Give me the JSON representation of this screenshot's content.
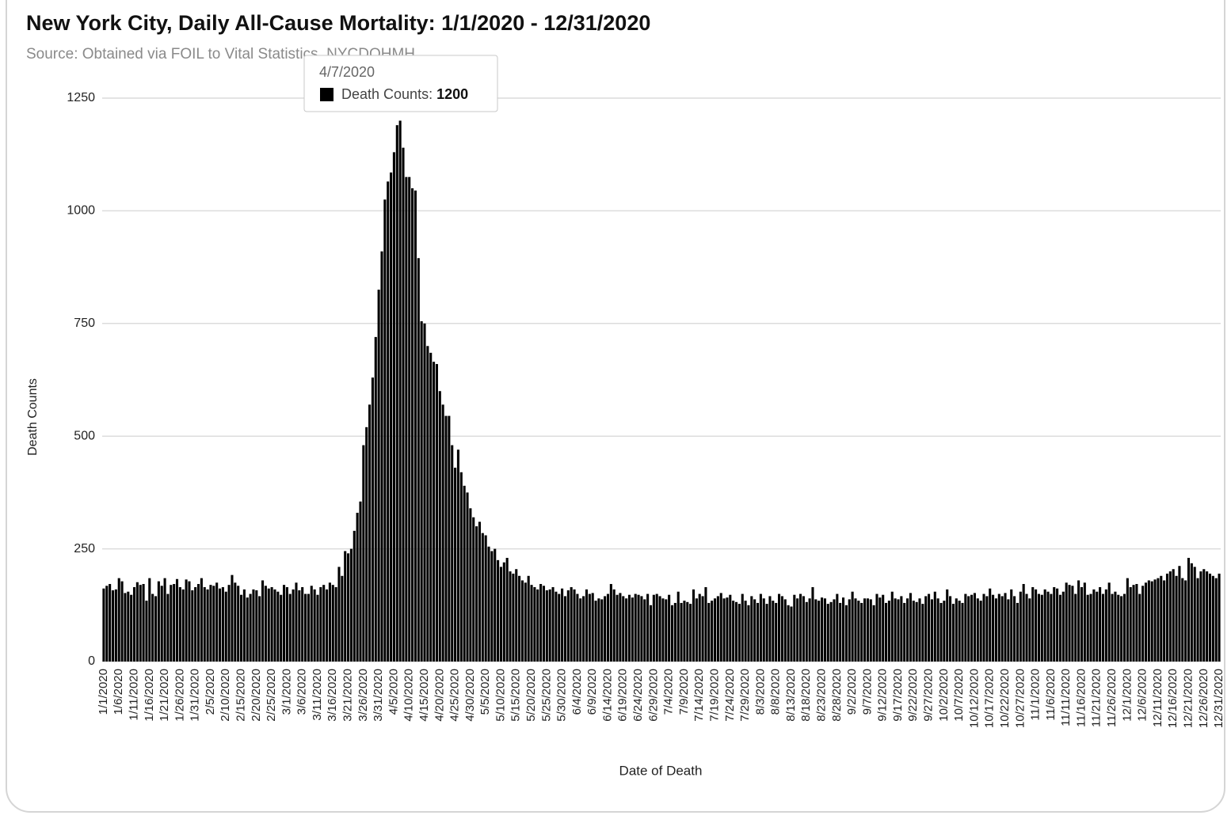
{
  "chart_data": {
    "type": "bar",
    "title": "New York City, Daily All-Cause Mortality: 1/1/2020 - 12/31/2020",
    "subtitle": "Source: Obtained via FOIL to Vital Statistics, NYCDOHMH",
    "x_label": "Date of Death",
    "y_label": "Death Counts",
    "color": "#000000",
    "grid": true,
    "ylim": [
      0,
      1250
    ],
    "yticks": [
      0,
      250,
      500,
      750,
      1000,
      1250
    ],
    "tooltip": {
      "date": "4/7/2020",
      "label": "Death Counts:",
      "value": 1200
    },
    "categories": [
      "1/1/2020",
      null,
      null,
      null,
      null,
      "1/6/2020",
      null,
      null,
      null,
      null,
      "1/11/2020",
      null,
      null,
      null,
      null,
      "1/16/2020",
      null,
      null,
      null,
      null,
      "1/21/2020",
      null,
      null,
      null,
      null,
      "1/26/2020",
      null,
      null,
      null,
      null,
      "1/31/2020",
      null,
      null,
      null,
      null,
      "2/5/2020",
      null,
      null,
      null,
      null,
      "2/10/2020",
      null,
      null,
      null,
      null,
      "2/15/2020",
      null,
      null,
      null,
      null,
      "2/20/2020",
      null,
      null,
      null,
      null,
      "2/25/2020",
      null,
      null,
      null,
      null,
      "3/1/2020",
      null,
      null,
      null,
      null,
      "3/6/2020",
      null,
      null,
      null,
      null,
      "3/11/2020",
      null,
      null,
      null,
      null,
      "3/16/2020",
      null,
      null,
      null,
      null,
      "3/21/2020",
      null,
      null,
      null,
      null,
      "3/26/2020",
      null,
      null,
      null,
      null,
      "3/31/2020",
      null,
      null,
      null,
      null,
      "4/5/2020",
      null,
      null,
      null,
      null,
      "4/10/2020",
      null,
      null,
      null,
      null,
      "4/15/2020",
      null,
      null,
      null,
      null,
      "4/20/2020",
      null,
      null,
      null,
      null,
      "4/25/2020",
      null,
      null,
      null,
      null,
      "4/30/2020",
      null,
      null,
      null,
      null,
      "5/5/2020",
      null,
      null,
      null,
      null,
      "5/10/2020",
      null,
      null,
      null,
      null,
      "5/15/2020",
      null,
      null,
      null,
      null,
      "5/20/2020",
      null,
      null,
      null,
      null,
      "5/25/2020",
      null,
      null,
      null,
      null,
      "5/30/2020",
      null,
      null,
      null,
      null,
      "6/4/2020",
      null,
      null,
      null,
      null,
      "6/9/2020",
      null,
      null,
      null,
      null,
      "6/14/2020",
      null,
      null,
      null,
      null,
      "6/19/2020",
      null,
      null,
      null,
      null,
      "6/24/2020",
      null,
      null,
      null,
      null,
      "6/29/2020",
      null,
      null,
      null,
      null,
      "7/4/2020",
      null,
      null,
      null,
      null,
      "7/9/2020",
      null,
      null,
      null,
      null,
      "7/14/2020",
      null,
      null,
      null,
      null,
      "7/19/2020",
      null,
      null,
      null,
      null,
      "7/24/2020",
      null,
      null,
      null,
      null,
      "7/29/2020",
      null,
      null,
      null,
      null,
      "8/3/2020",
      null,
      null,
      null,
      null,
      "8/8/2020",
      null,
      null,
      null,
      null,
      "8/13/2020",
      null,
      null,
      null,
      null,
      "8/18/2020",
      null,
      null,
      null,
      null,
      "8/23/2020",
      null,
      null,
      null,
      null,
      "8/28/2020",
      null,
      null,
      null,
      null,
      "9/2/2020",
      null,
      null,
      null,
      null,
      "9/7/2020",
      null,
      null,
      null,
      null,
      "9/12/2020",
      null,
      null,
      null,
      null,
      "9/17/2020",
      null,
      null,
      null,
      null,
      "9/22/2020",
      null,
      null,
      null,
      null,
      "9/27/2020",
      null,
      null,
      null,
      null,
      "10/2/2020",
      null,
      null,
      null,
      null,
      "10/7/2020",
      null,
      null,
      null,
      null,
      "10/12/2020",
      null,
      null,
      null,
      null,
      "10/17/2020",
      null,
      null,
      null,
      null,
      "10/22/2020",
      null,
      null,
      null,
      null,
      "10/27/2020",
      null,
      null,
      null,
      null,
      "11/1/2020",
      null,
      null,
      null,
      null,
      "11/6/2020",
      null,
      null,
      null,
      null,
      "11/11/2020",
      null,
      null,
      null,
      null,
      "11/16/2020",
      null,
      null,
      null,
      null,
      "11/21/2020",
      null,
      null,
      null,
      null,
      "11/26/2020",
      null,
      null,
      null,
      null,
      "12/1/2020",
      null,
      null,
      null,
      null,
      "12/6/2020",
      null,
      null,
      null,
      null,
      "12/11/2020",
      null,
      null,
      null,
      null,
      "12/16/2020",
      null,
      null,
      null,
      null,
      "12/21/2020",
      null,
      null,
      null,
      null,
      "12/26/2020",
      null,
      null,
      null,
      null,
      "12/31/2020"
    ],
    "values": [
      162,
      168,
      172,
      158,
      160,
      185,
      178,
      152,
      155,
      148,
      165,
      176,
      170,
      172,
      135,
      185,
      150,
      145,
      178,
      168,
      185,
      150,
      170,
      172,
      183,
      165,
      160,
      182,
      178,
      158,
      165,
      172,
      185,
      165,
      160,
      170,
      168,
      175,
      162,
      165,
      155,
      170,
      192,
      175,
      168,
      148,
      160,
      142,
      150,
      160,
      158,
      145,
      180,
      168,
      162,
      165,
      160,
      155,
      148,
      170,
      165,
      150,
      160,
      175,
      158,
      165,
      150,
      150,
      168,
      160,
      148,
      165,
      170,
      160,
      175,
      170,
      165,
      210,
      190,
      245,
      240,
      250,
      290,
      330,
      355,
      480,
      520,
      570,
      630,
      720,
      825,
      910,
      1025,
      1065,
      1085,
      1130,
      1190,
      1200,
      1140,
      1075,
      1075,
      1050,
      1045,
      895,
      755,
      750,
      700,
      685,
      665,
      660,
      600,
      570,
      545,
      545,
      480,
      430,
      470,
      420,
      390,
      375,
      340,
      320,
      300,
      310,
      285,
      280,
      255,
      245,
      250,
      225,
      210,
      220,
      230,
      200,
      195,
      205,
      190,
      180,
      175,
      190,
      170,
      165,
      160,
      172,
      168,
      158,
      160,
      165,
      155,
      150,
      162,
      145,
      158,
      165,
      160,
      150,
      140,
      145,
      160,
      150,
      152,
      135,
      140,
      138,
      145,
      150,
      172,
      160,
      148,
      152,
      145,
      140,
      148,
      142,
      150,
      148,
      145,
      138,
      150,
      125,
      148,
      150,
      145,
      140,
      138,
      148,
      125,
      130,
      155,
      130,
      135,
      132,
      128,
      160,
      140,
      150,
      145,
      165,
      130,
      135,
      140,
      145,
      152,
      140,
      142,
      148,
      135,
      132,
      128,
      150,
      135,
      125,
      145,
      138,
      130,
      150,
      140,
      128,
      145,
      135,
      130,
      150,
      145,
      138,
      125,
      122,
      148,
      140,
      150,
      145,
      132,
      140,
      165,
      138,
      135,
      142,
      140,
      128,
      132,
      138,
      150,
      130,
      142,
      125,
      138,
      155,
      140,
      135,
      130,
      140,
      140,
      138,
      125,
      150,
      142,
      148,
      130,
      135,
      155,
      140,
      138,
      145,
      130,
      140,
      152,
      135,
      132,
      140,
      128,
      145,
      150,
      138,
      155,
      140,
      130,
      135,
      160,
      145,
      128,
      140,
      135,
      130,
      150,
      145,
      148,
      152,
      140,
      135,
      150,
      145,
      162,
      148,
      140,
      150,
      145,
      152,
      138,
      160,
      145,
      130,
      155,
      172,
      150,
      140,
      165,
      160,
      150,
      148,
      160,
      155,
      150,
      165,
      162,
      148,
      155,
      175,
      170,
      168,
      150,
      180,
      165,
      175,
      148,
      150,
      160,
      155,
      165,
      150,
      160,
      175,
      150,
      155,
      148,
      145,
      150,
      185,
      165,
      170,
      172,
      150,
      168,
      175,
      180,
      178,
      182,
      185,
      190,
      180,
      195,
      200,
      205,
      190,
      212,
      185,
      180,
      230,
      218,
      210,
      185,
      200,
      205,
      200,
      195,
      190,
      185,
      195
    ]
  }
}
